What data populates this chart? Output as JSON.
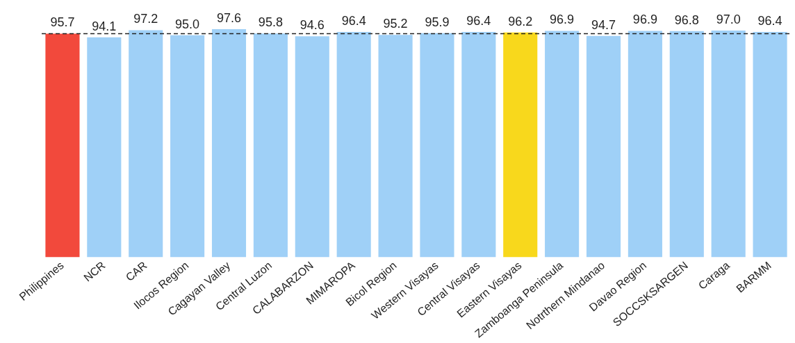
{
  "chart_data": {
    "type": "bar",
    "categories": [
      "Philippines",
      "NCR",
      "CAR",
      "Ilocos Region",
      "Cagayan Valley",
      "Central Luzon",
      "CALABARZON",
      "MIMAROPA",
      "Bicol Region",
      "Western Visayas",
      "Central Visayas",
      "Eastern Visayas",
      "Zamboanga Peninsula",
      "Notrthern Mindanao",
      "Davao Region",
      "SOCCSKSARGEN",
      "Caraga",
      "BARMM"
    ],
    "values": [
      95.7,
      94.1,
      97.2,
      95.0,
      97.6,
      95.8,
      94.6,
      96.4,
      95.2,
      95.9,
      96.4,
      96.2,
      96.9,
      94.7,
      96.9,
      96.8,
      97.0,
      96.4
    ],
    "colors": [
      "#f2493c",
      "#9fd0f7",
      "#9fd0f7",
      "#9fd0f7",
      "#9fd0f7",
      "#9fd0f7",
      "#9fd0f7",
      "#9fd0f7",
      "#9fd0f7",
      "#9fd0f7",
      "#9fd0f7",
      "#f8d81c",
      "#9fd0f7",
      "#9fd0f7",
      "#9fd0f7",
      "#9fd0f7",
      "#9fd0f7",
      "#9fd0f7"
    ],
    "value_labels": [
      "95.7",
      "94.1",
      "97.2",
      "95.0",
      "97.6",
      "95.8",
      "94.6",
      "96.4",
      "95.2",
      "95.9",
      "96.4",
      "96.2",
      "96.9",
      "94.7",
      "96.9",
      "96.8",
      "97.0",
      "96.4"
    ],
    "ref_lines": [
      {
        "axis": "y",
        "value": 95.7,
        "line_style": "dashed",
        "color": "#222222"
      }
    ],
    "grid": false,
    "legend": false,
    "tick_labels": "x"
  }
}
